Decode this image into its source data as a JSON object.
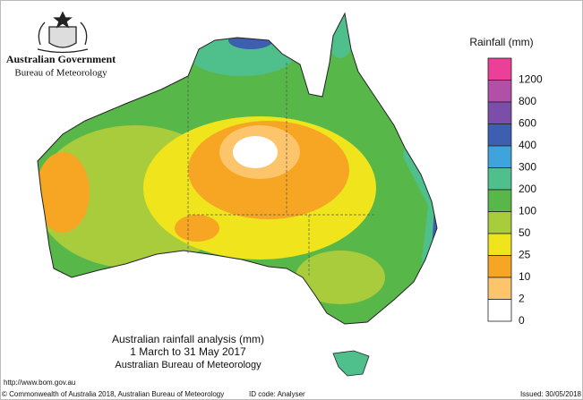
{
  "header": {
    "title": "Australian Government",
    "subtitle": "Bureau of Meteorology"
  },
  "legend": {
    "title": "Rainfall (mm)",
    "labels": [
      "1200",
      "800",
      "600",
      "400",
      "300",
      "200",
      "100",
      "50",
      "25",
      "10",
      "2",
      "0"
    ],
    "colors": [
      "#ec3f98",
      "#b24fa6",
      "#7b4fa9",
      "#3e5fb1",
      "#3fa3dc",
      "#4fbf8c",
      "#58b749",
      "#a9cc3d",
      "#f0e51d",
      "#f6a623",
      "#fcc46b",
      "#ffffff"
    ]
  },
  "caption": {
    "lines": [
      "Australian rainfall analysis (mm)",
      "1 March to 31 May 2017",
      "Australian Bureau of Meteorology"
    ],
    "url": "http://www.bom.gov.au"
  },
  "footer": {
    "copyright": "© Commonwealth of Australia 2018, Australian Bureau of Meteorology",
    "id_code": "ID code: Analyser",
    "issued": "Issued: 30/05/2018"
  }
}
